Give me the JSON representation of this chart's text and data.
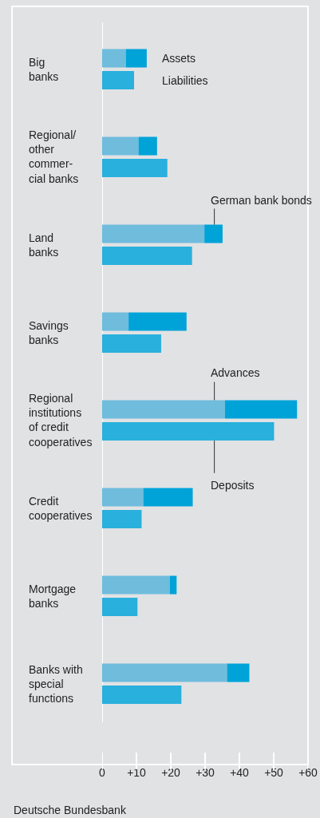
{
  "chart_data": {
    "type": "bar",
    "orientation": "horizontal",
    "stacked": true,
    "categories": [
      "Big\nbanks",
      null,
      null,
      null,
      "Regional/\nother\ncommer-\ncial banks",
      null,
      null,
      null,
      "Land\nbanks",
      null,
      null,
      null,
      "Savings\nbanks",
      null,
      null,
      null,
      "Regional\ninstitutions\nof credit\ncooperatives",
      null,
      null,
      null,
      "Credit\ncooperatives",
      null,
      null,
      null,
      "Mortgage\nbanks",
      null,
      null,
      null,
      "Banks with\nspecial\nfunctions",
      null
    ],
    "series": [
      {
        "name": "Advances",
        "color": "#6fbcdd",
        "values": [
          6.9,
          null,
          null,
          null,
          10.6,
          null,
          null,
          null,
          29.8,
          null,
          null,
          null,
          7.7,
          null,
          null,
          null,
          35.8,
          null,
          null,
          null,
          12.0,
          null,
          null,
          null,
          19.7,
          null,
          null,
          null,
          36.4,
          null
        ]
      },
      {
        "name": "German bank bonds",
        "color": "#00a3d8",
        "values": [
          6.1,
          null,
          null,
          null,
          5.4,
          null,
          null,
          null,
          5.3,
          null,
          null,
          null,
          16.9,
          null,
          null,
          null,
          21.0,
          null,
          null,
          null,
          14.4,
          null,
          null,
          null,
          2.0,
          null,
          null,
          null,
          6.5,
          null
        ]
      },
      {
        "name": "Deposits",
        "color": "#29b0dc",
        "values": [
          null,
          9.3,
          null,
          null,
          null,
          19.0,
          null,
          null,
          null,
          26.2,
          null,
          null,
          null,
          17.2,
          null,
          null,
          null,
          50.1,
          null,
          null,
          null,
          11.5,
          null,
          null,
          null,
          10.3,
          null,
          null,
          null,
          23.1
        ]
      }
    ],
    "xlim": [
      0,
      60
    ],
    "xticks": [
      0,
      {
        "value": 10,
        "label": "+10"
      },
      {
        "value": 20,
        "label": "+20"
      },
      {
        "value": 30,
        "label": "+30"
      },
      {
        "value": 40,
        "label": "+40"
      },
      {
        "value": 50,
        "label": "+50"
      },
      {
        "value": 60,
        "label": "+60"
      }
    ],
    "annotations": [
      "Assets",
      "Liabilities",
      "Deutsche Bundesbank"
    ]
  }
}
